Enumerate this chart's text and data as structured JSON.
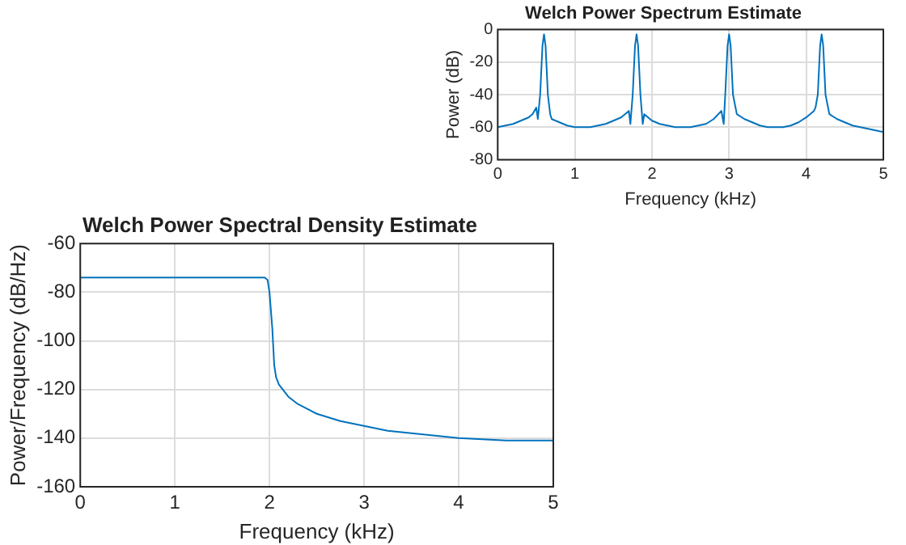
{
  "chart_data": [
    {
      "type": "line",
      "title": "Welch Power Spectrum Estimate",
      "xlabel": "Frequency (kHz)",
      "ylabel": "Power (dB)",
      "x": [
        0,
        0.1,
        0.2,
        0.3,
        0.4,
        0.45,
        0.5,
        0.52,
        0.55,
        0.58,
        0.6,
        0.62,
        0.65,
        0.68,
        0.7,
        0.8,
        0.9,
        1.0,
        1.1,
        1.2,
        1.3,
        1.4,
        1.5,
        1.6,
        1.7,
        1.72,
        1.75,
        1.78,
        1.8,
        1.82,
        1.85,
        1.88,
        1.9,
        2.0,
        2.1,
        2.2,
        2.3,
        2.4,
        2.5,
        2.6,
        2.7,
        2.8,
        2.9,
        2.93,
        2.95,
        2.98,
        3.0,
        3.02,
        3.05,
        3.1,
        3.2,
        3.3,
        3.4,
        3.5,
        3.6,
        3.7,
        3.8,
        3.9,
        4.0,
        4.1,
        4.12,
        4.15,
        4.18,
        4.2,
        4.22,
        4.25,
        4.3,
        4.4,
        4.5,
        4.6,
        4.7,
        4.8,
        4.9,
        5.0
      ],
      "series": [
        {
          "color": "#0072bd",
          "values": [
            -60,
            -59,
            -58,
            -56,
            -54,
            -52,
            -48,
            -55,
            -40,
            -10,
            -3,
            -10,
            -40,
            -52,
            -55,
            -57,
            -59,
            -60,
            -60,
            -60,
            -59,
            -58,
            -56,
            -54,
            -50,
            -58,
            -40,
            -10,
            -3,
            -10,
            -40,
            -58,
            -52,
            -56,
            -58,
            -59,
            -60,
            -60,
            -60,
            -59,
            -58,
            -55,
            -50,
            -58,
            -40,
            -10,
            -3,
            -10,
            -40,
            -52,
            -55,
            -57,
            -59,
            -60,
            -60,
            -60,
            -59,
            -57,
            -54,
            -50,
            -48,
            -40,
            -10,
            -3,
            -10,
            -40,
            -52,
            -55,
            -57,
            -59,
            -60,
            -61,
            -62,
            -63
          ]
        }
      ],
      "xlim": [
        0,
        5
      ],
      "xticks": [
        0,
        1,
        2,
        3,
        4,
        5
      ],
      "ylim": [
        -80,
        0
      ],
      "yticks": [
        -80,
        -60,
        -40,
        -20,
        0
      ],
      "grid": true,
      "legend": false,
      "marker": "none",
      "line_style": "solid"
    },
    {
      "type": "line",
      "title": "Welch Power Spectral Density Estimate",
      "xlabel": "Frequency (kHz)",
      "ylabel": "Power/Frequency (dB/Hz)",
      "x": [
        0,
        1.95,
        1.98,
        2.0,
        2.03,
        2.05,
        2.07,
        2.1,
        2.2,
        2.3,
        2.5,
        2.75,
        3.0,
        3.25,
        3.5,
        4.0,
        4.5,
        5.0
      ],
      "series": [
        {
          "color": "#0072bd",
          "values": [
            -74,
            -74,
            -75,
            -80,
            -95,
            -110,
            -115,
            -118,
            -123,
            -126,
            -130,
            -133,
            -135,
            -137,
            -138,
            -140,
            -141,
            -141
          ]
        }
      ],
      "xlim": [
        0,
        5
      ],
      "xticks": [
        0,
        1,
        2,
        3,
        4,
        5
      ],
      "ylim": [
        -160,
        -60
      ],
      "yticks": [
        -160,
        -140,
        -120,
        -100,
        -80,
        -60
      ],
      "grid": true,
      "legend": false,
      "marker": "none",
      "line_style": "solid"
    }
  ]
}
